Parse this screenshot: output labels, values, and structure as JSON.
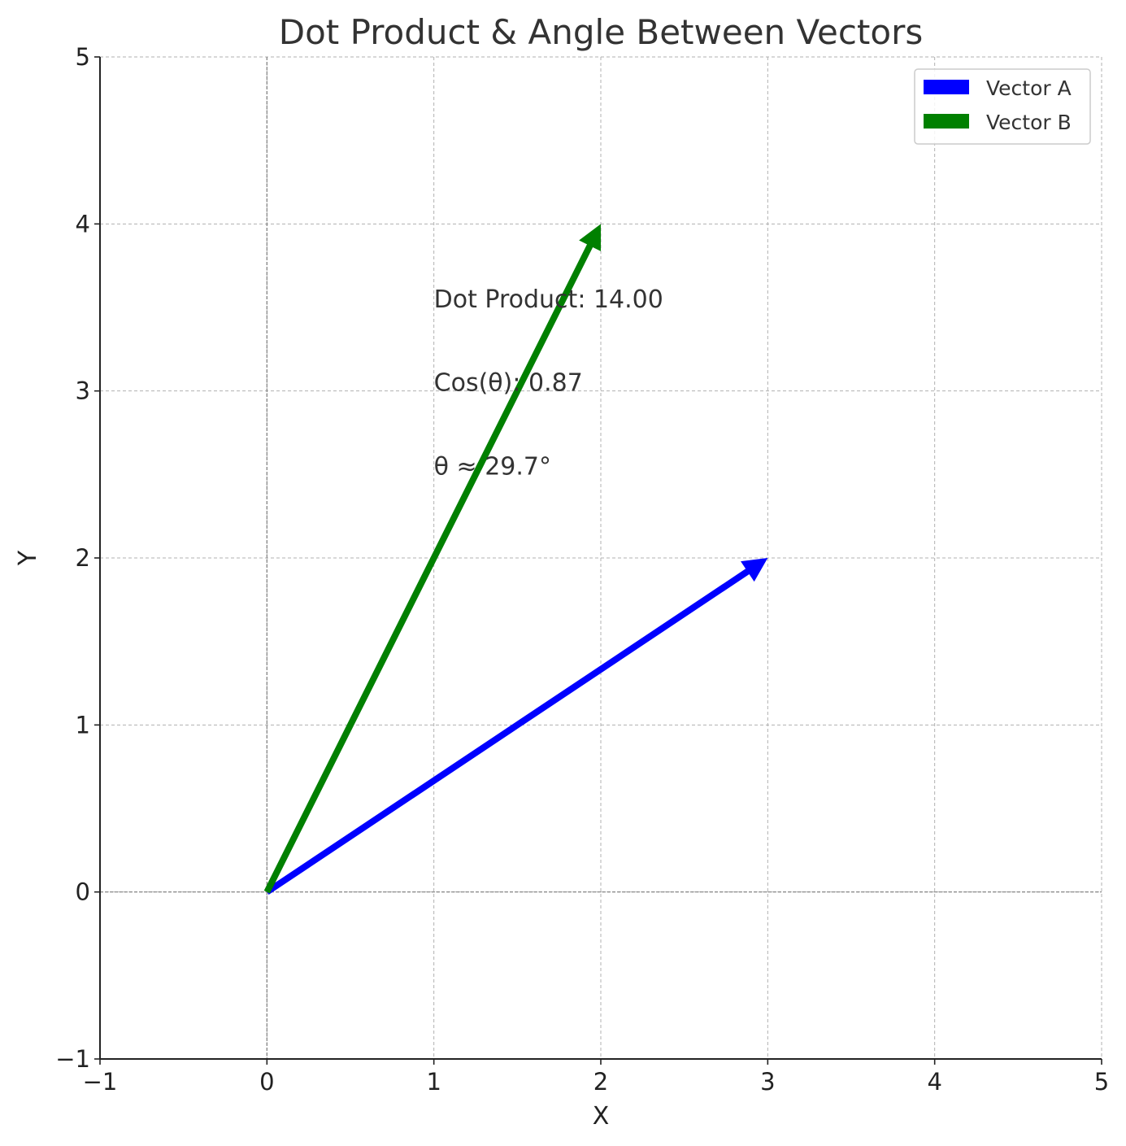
{
  "chart_data": {
    "type": "quiver",
    "title": "Dot Product & Angle Between Vectors",
    "xlabel": "X",
    "ylabel": "Y",
    "xlim": [
      -1,
      5
    ],
    "ylim": [
      -1,
      5
    ],
    "xticks": [
      -1,
      0,
      1,
      2,
      3,
      4,
      5
    ],
    "yticks": [
      -1,
      0,
      1,
      2,
      3,
      4,
      5
    ],
    "xtick_labels": [
      "−1",
      "0",
      "1",
      "2",
      "3",
      "4",
      "5"
    ],
    "ytick_labels": [
      "−1",
      "0",
      "1",
      "2",
      "3",
      "4",
      "5"
    ],
    "grid": true,
    "legend_position": "top-right",
    "vectors": [
      {
        "name": "Vector A",
        "origin": [
          0,
          0
        ],
        "components": [
          3,
          2
        ],
        "color": "#0000ff"
      },
      {
        "name": "Vector B",
        "origin": [
          0,
          0
        ],
        "components": [
          2,
          4
        ],
        "color": "#008000"
      }
    ],
    "annotations": [
      {
        "text": "Dot Product: 14.00",
        "x": 1,
        "y": 3.5
      },
      {
        "text": "Cos(θ): 0.87",
        "x": 1,
        "y": 3.0
      },
      {
        "text": "θ ≈ 29.7°",
        "x": 1,
        "y": 2.5
      }
    ]
  }
}
